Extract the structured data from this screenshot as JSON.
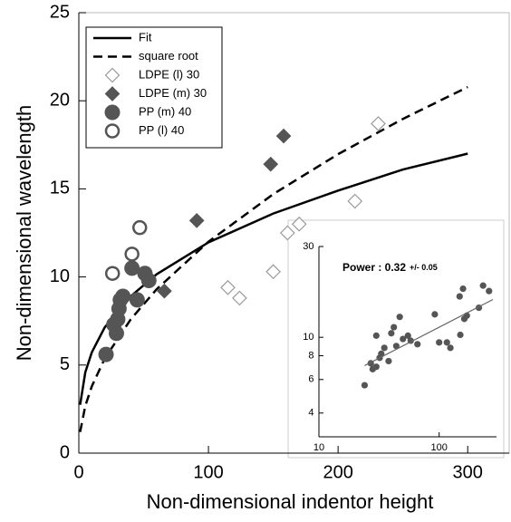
{
  "chart_data": [
    {
      "type": "scatter",
      "xlabel": "Non-dimensional indentor height",
      "ylabel": "Non-dimensional wavelength",
      "xlim": [
        0,
        332
      ],
      "ylim": [
        0,
        25
      ],
      "xticks": [
        0,
        100,
        200,
        300
      ],
      "yticks": [
        0,
        5,
        10,
        15,
        20,
        25
      ],
      "legend": "upper left",
      "series": [
        {
          "name": "Fit",
          "style": "solid",
          "color": "#000000",
          "x": [
            1,
            5,
            10,
            20,
            40,
            60,
            100,
            150,
            200,
            250,
            300
          ],
          "values": [
            2.74,
            4.59,
            5.72,
            7.14,
            8.9,
            10.15,
            11.96,
            13.6,
            14.9,
            16.1,
            17.0
          ]
        },
        {
          "name": "square root",
          "style": "dashed",
          "color": "#000000",
          "x": [
            1,
            5,
            10,
            20,
            40,
            60,
            100,
            150,
            200,
            250,
            300
          ],
          "values": [
            1.2,
            2.68,
            3.79,
            5.37,
            7.59,
            9.3,
            12.0,
            14.7,
            16.97,
            18.97,
            20.78
          ]
        },
        {
          "name": "LDPE (l) 30",
          "style": "diamond-open",
          "color": "#9a9a9a",
          "x": [
            231,
            213,
            170,
            161,
            150,
            115,
            124
          ],
          "values": [
            18.7,
            14.3,
            13.0,
            12.5,
            10.3,
            9.4,
            8.8
          ]
        },
        {
          "name": "LDPE (m) 30",
          "style": "diamond-filled",
          "color": "#555555",
          "x": [
            158,
            148,
            91,
            66
          ],
          "values": [
            18.0,
            16.4,
            13.2,
            9.2
          ]
        },
        {
          "name": "PP (m) 40",
          "style": "circle-filled",
          "color": "#555555",
          "x": [
            21,
            27,
            29,
            30,
            31,
            32,
            34,
            41,
            45,
            51,
            54
          ],
          "values": [
            5.6,
            7.3,
            6.8,
            7.6,
            8.2,
            8.7,
            8.9,
            10.5,
            8.7,
            10.2,
            9.8
          ]
        },
        {
          "name": "PP (l) 40",
          "style": "circle-open",
          "color": "#555555",
          "x": [
            26,
            41,
            47
          ],
          "values": [
            10.2,
            11.3,
            12.8
          ]
        }
      ]
    },
    {
      "type": "scatter",
      "log_x": true,
      "log_y": true,
      "annotation": "Power : 0.32",
      "annotation_small": "+/- 0.05",
      "xlim": [
        10,
        300
      ],
      "ylim": [
        3,
        30
      ],
      "xticks": [
        10,
        100
      ],
      "yticks": [
        4,
        6,
        8,
        10,
        30
      ],
      "series": [
        {
          "name": null,
          "style": "dot",
          "color": "#555555",
          "x": [
            24,
            27,
            28,
            30,
            30,
            32,
            33,
            35,
            38,
            40,
            42,
            44,
            47,
            50,
            55,
            58,
            66,
            92,
            100,
            116,
            124,
            148,
            150,
            158,
            162,
            170,
            214,
            232,
            260
          ],
          "values": [
            5.6,
            7.3,
            6.8,
            7.0,
            10.2,
            7.8,
            8.2,
            8.8,
            7.5,
            10.5,
            11.3,
            9.0,
            12.8,
            9.8,
            10.2,
            9.6,
            9.2,
            13.2,
            9.4,
            9.4,
            8.8,
            16.4,
            10.3,
            18.0,
            12.5,
            13.0,
            14.3,
            18.7,
            17.5
          ]
        },
        {
          "name": null,
          "style": "thin",
          "color": "#666666",
          "x": [
            24,
            280
          ],
          "values": [
            7.1,
            15.8
          ]
        }
      ]
    }
  ]
}
